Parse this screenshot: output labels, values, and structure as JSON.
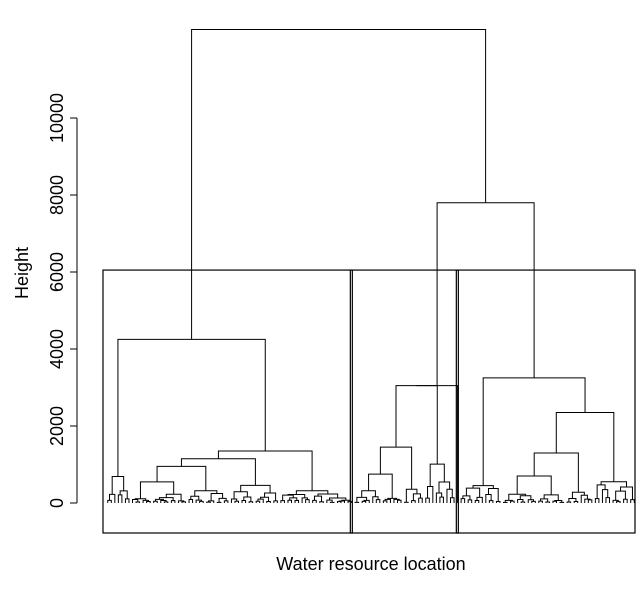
{
  "chart_data": {
    "type": "dendrogram",
    "title": "",
    "xlabel": "Water resource location",
    "ylabel": "Height",
    "ylim": [
      0,
      12500
    ],
    "y_ticks": [
      0,
      2000,
      4000,
      6000,
      8000,
      10000
    ],
    "tick_labels": [
      "0",
      "2000",
      "4000",
      "6000",
      "8000",
      "10000"
    ],
    "grid": false,
    "legend": "none",
    "leaf_count": 150,
    "cut_height": 6050,
    "cluster_leaf_counts": [
      70,
      30,
      50
    ],
    "major_merges": [
      {
        "name": "cluster-1-top",
        "height": 4250
      },
      {
        "name": "cluster-2-top",
        "height": 3050
      },
      {
        "name": "cluster-3-top",
        "height": 3250
      },
      {
        "name": "clusters-2-3",
        "height": 7800
      },
      {
        "name": "root",
        "height": 12300
      }
    ],
    "subclusters": {
      "cluster-1": [
        1300,
        1350,
        1150,
        950,
        550,
        300,
        200,
        150
      ],
      "cluster-2": [
        1450,
        1700,
        750,
        550,
        800,
        350
      ],
      "cluster-3": [
        2350,
        1300,
        850,
        1200,
        700,
        400,
        350,
        200
      ]
    },
    "colors": {
      "stroke": "#000000",
      "background": "#ffffff"
    }
  }
}
